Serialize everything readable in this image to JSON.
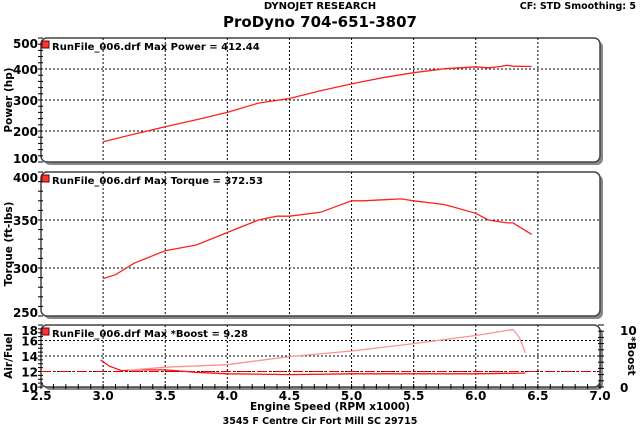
{
  "header": {
    "company": "DYNOJET RESEARCH",
    "phone_title": "ProDyno 704-651-3807",
    "settings": "CF: STD  Smoothing: 5"
  },
  "footer": {
    "address": "3545 F Centre Cir Fort Mill SC 29715"
  },
  "colors": {
    "power": "#ff2020",
    "torque": "#ff2020",
    "afr": "#ff1010",
    "boost": "#ff9090",
    "frame": "#555555"
  },
  "chart_data": [
    {
      "type": "line",
      "id": "power",
      "ylabel": "Power (hp)",
      "legend": "RunFile_006.drf Max Power = 412.44",
      "ylim": [
        100,
        500
      ],
      "yticks": [
        "100",
        "200",
        "300",
        "400",
        "500"
      ],
      "series": [
        {
          "name": "Power",
          "x": [
            3.0,
            3.25,
            3.5,
            3.75,
            4.0,
            4.25,
            4.5,
            4.75,
            5.0,
            5.25,
            5.5,
            5.75,
            6.0,
            6.1,
            6.2,
            6.25,
            6.3,
            6.45
          ],
          "y": [
            165,
            190,
            214,
            236,
            260,
            290,
            305,
            330,
            352,
            372,
            388,
            401,
            407,
            404,
            408,
            412,
            409,
            408
          ]
        }
      ]
    },
    {
      "type": "line",
      "id": "torque",
      "ylabel": "Torque (ft-lbs)",
      "legend": "RunFile_006.drf Max Torque = 372.53",
      "ylim": [
        250,
        400
      ],
      "yticks": [
        "250",
        "300",
        "350",
        "400"
      ],
      "series": [
        {
          "name": "Torque",
          "x": [
            3.0,
            3.1,
            3.25,
            3.5,
            3.75,
            4.0,
            4.25,
            4.4,
            4.5,
            4.75,
            5.0,
            5.1,
            5.25,
            5.4,
            5.5,
            5.75,
            6.0,
            6.1,
            6.25,
            6.3,
            6.45
          ],
          "y": [
            289,
            293,
            305,
            318,
            324,
            337,
            350,
            354,
            354,
            358,
            370,
            370,
            371,
            372,
            370,
            366,
            357,
            350,
            347,
            347,
            335
          ]
        }
      ]
    },
    {
      "type": "line",
      "id": "afr",
      "ylabel": "Air/Fuel",
      "y2label": "*Boost",
      "legend": "RunFile_006.drf Max *Boost = 9.28",
      "ylim": [
        10,
        18
      ],
      "yticks": [
        "10",
        "12",
        "14",
        "16",
        "18"
      ],
      "y2lim": [
        0,
        10
      ],
      "y2ticks": [
        "0",
        "10"
      ],
      "reference_afr": 12,
      "series": [
        {
          "name": "Air/Fuel",
          "x": [
            2.98,
            3.05,
            3.15,
            3.3,
            3.5,
            3.75,
            4.0,
            4.5,
            5.0,
            5.5,
            6.0,
            6.4
          ],
          "y": [
            13.5,
            12.7,
            12.1,
            12.2,
            12.2,
            11.9,
            11.7,
            11.6,
            11.7,
            11.7,
            11.7,
            11.8
          ]
        },
        {
          "name": "*Boost",
          "x": [
            3.2,
            3.5,
            4.0,
            4.5,
            5.0,
            5.5,
            6.0,
            6.3,
            6.35,
            6.4
          ],
          "y": [
            2.7,
            3.2,
            3.6,
            4.9,
            5.8,
            7.0,
            8.3,
            9.28,
            8.0,
            5.5
          ]
        }
      ]
    }
  ],
  "xaxis": {
    "label": "Engine Speed (RPM x1000)",
    "xlim": [
      2.5,
      7.0
    ],
    "ticks": [
      "2.5",
      "3.0",
      "3.5",
      "4.0",
      "4.5",
      "5.0",
      "5.5",
      "6.0",
      "6.5",
      "7.0"
    ]
  }
}
